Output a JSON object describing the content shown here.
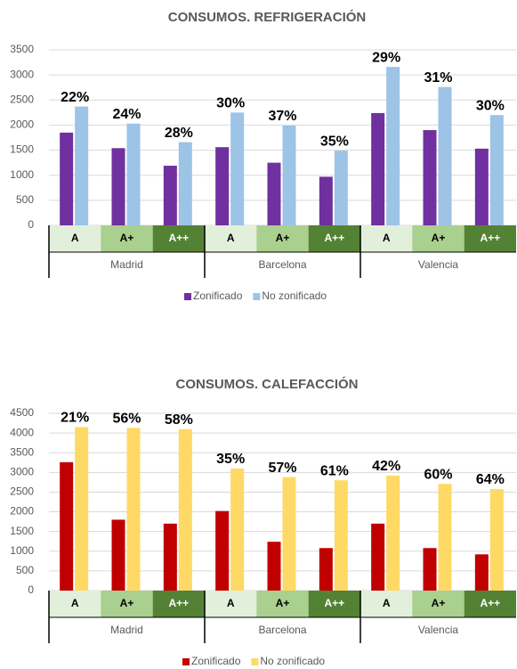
{
  "chart_data": [
    {
      "type": "bar",
      "title": "CONSUMOS. REFRIGERACIÓN",
      "groups": [
        "Madrid",
        "Barcelona",
        "Valencia"
      ],
      "categories": [
        "A",
        "A+",
        "A++",
        "A",
        "A+",
        "A++",
        "A",
        "A+",
        "A++"
      ],
      "category_fills": [
        "#e2efda",
        "#a9d08e",
        "#548235"
      ],
      "series": [
        {
          "name": "Zonificado",
          "color": "#7030a0",
          "values": [
            1850,
            1540,
            1190,
            1560,
            1250,
            970,
            2240,
            1900,
            1530
          ]
        },
        {
          "name": "No zonificado",
          "color": "#9dc3e6",
          "values": [
            2370,
            2030,
            1660,
            2250,
            1990,
            1490,
            3160,
            2760,
            2200
          ]
        }
      ],
      "annotations": [
        "22%",
        "24%",
        "28%",
        "30%",
        "37%",
        "35%",
        "29%",
        "31%",
        "30%"
      ],
      "ylim": [
        0,
        3500
      ],
      "yticks": [
        0,
        500,
        1000,
        1500,
        2000,
        2500,
        3000,
        3500
      ],
      "legend": "bottom"
    },
    {
      "type": "bar",
      "title": "CONSUMOS. CALEFACCIÓN",
      "groups": [
        "Madrid",
        "Barcelona",
        "Valencia"
      ],
      "categories": [
        "A",
        "A+",
        "A++",
        "A",
        "A+",
        "A++",
        "A",
        "A+",
        "A++"
      ],
      "category_fills": [
        "#e2efda",
        "#a9d08e",
        "#548235"
      ],
      "series": [
        {
          "name": "Zonificado",
          "color": "#c00000",
          "values": [
            3260,
            1800,
            1700,
            2020,
            1240,
            1080,
            1700,
            1080,
            920
          ]
        },
        {
          "name": "No zonificado",
          "color": "#ffd966",
          "values": [
            4150,
            4130,
            4100,
            3100,
            2880,
            2800,
            2920,
            2710,
            2580
          ]
        }
      ],
      "annotations": [
        "21%",
        "56%",
        "58%",
        "35%",
        "57%",
        "61%",
        "42%",
        "60%",
        "64%"
      ],
      "ylim": [
        0,
        4500
      ],
      "yticks": [
        0,
        500,
        1000,
        1500,
        2000,
        2500,
        3000,
        3500,
        4000,
        4500
      ],
      "legend": "bottom"
    }
  ]
}
